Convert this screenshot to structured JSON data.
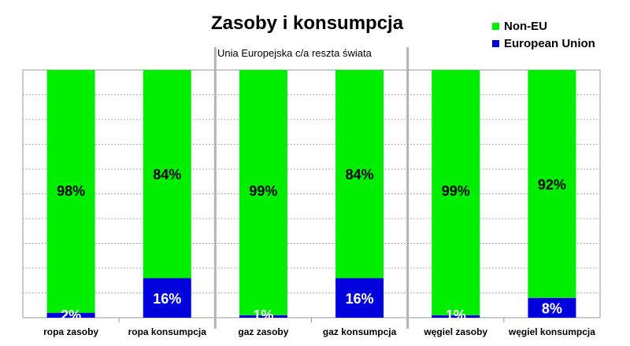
{
  "chart_data": {
    "type": "bar",
    "stacked": true,
    "percent": true,
    "title": "Zasoby i konsumpcja",
    "subtitle": "Unia Europejska c/a reszta świata",
    "categories": [
      "ropa zasoby",
      "ropa konsumpcja",
      "gaz zasoby",
      "gaz konsumpcja",
      "węgiel zasoby",
      "węgiel konsumpcja"
    ],
    "series": [
      {
        "name": "European Union",
        "color": "#0000dd",
        "values": [
          2,
          16,
          1,
          16,
          1,
          8
        ],
        "labels": [
          "2%",
          "16%",
          "1%",
          "16%",
          "1%",
          "8%"
        ]
      },
      {
        "name": "Non-EU",
        "color": "#00ee00",
        "values": [
          98,
          84,
          99,
          84,
          99,
          92
        ],
        "labels": [
          "98%",
          "84%",
          "99%",
          "84%",
          "99%",
          "92%"
        ]
      }
    ],
    "ylim": [
      0,
      100
    ],
    "grid": true,
    "legend": "top-right"
  },
  "legend_entries": [
    {
      "name": "Non-EU",
      "color": "#00ee00"
    },
    {
      "name": "European Union",
      "color": "#0000dd"
    }
  ]
}
